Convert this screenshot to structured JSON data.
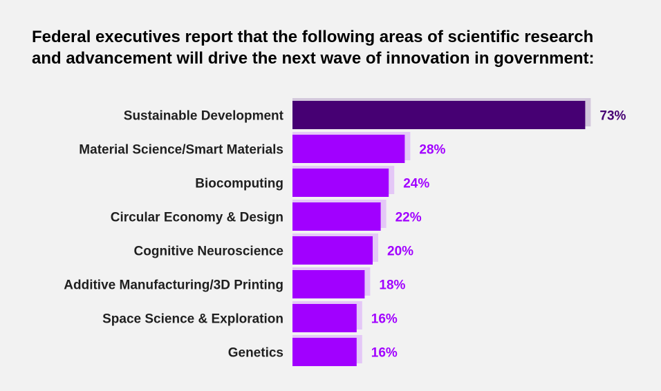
{
  "chart_data": {
    "type": "bar",
    "orientation": "horizontal",
    "title_lines": [
      "Federal executives report that the following areas of scientific research",
      "and advancement will drive the next wave of innovation in government:"
    ],
    "categories": [
      "Sustainable Development",
      "Material Science/Smart Materials",
      "Biocomputing",
      "Circular Economy & Design",
      "Cognitive Neuroscience",
      "Additive Manufacturing/3D Printing",
      "Space Science & Exploration",
      "Genetics"
    ],
    "values": [
      73,
      28,
      24,
      22,
      20,
      18,
      16,
      16
    ],
    "value_labels": [
      "73%",
      "28%",
      "24%",
      "22%",
      "20%",
      "18%",
      "16%",
      "16%"
    ],
    "highlight_index": 0,
    "xlim": [
      0,
      100
    ],
    "grid": false,
    "legend": "none",
    "colors": {
      "highlight_bar": "#460073",
      "highlight_shadow": "#d3c7dc",
      "highlight_label": "#460073",
      "bar": "#a100ff",
      "bar_shadow": "#e4c7f7",
      "label": "#a100ff",
      "category_text": "#1f1f1f"
    }
  }
}
